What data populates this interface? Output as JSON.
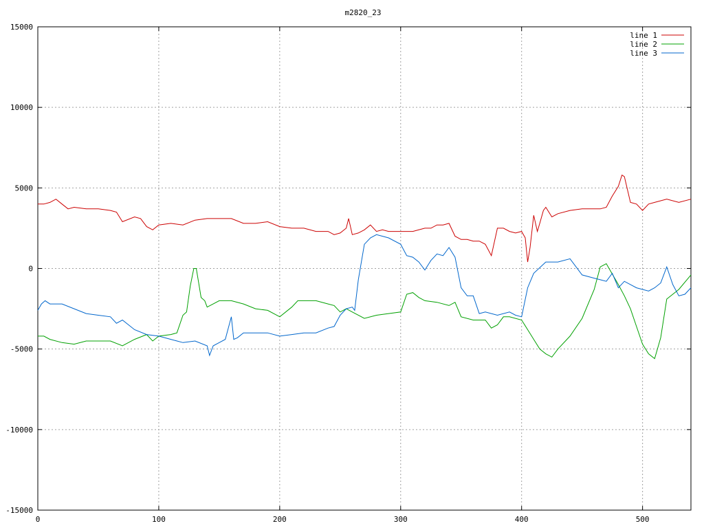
{
  "chart_data": {
    "type": "line",
    "title": "m2820_23",
    "xlabel": "",
    "ylabel": "",
    "xlim": [
      0,
      540
    ],
    "ylim": [
      -15000,
      15000
    ],
    "x_ticks": [
      0,
      100,
      200,
      300,
      400,
      500
    ],
    "y_ticks": [
      -15000,
      -10000,
      -5000,
      0,
      5000,
      10000,
      15000
    ],
    "grid": true,
    "legend_position": "top-right",
    "series": [
      {
        "name": "line 1",
        "color": "#cc0000",
        "x": [
          0,
          5,
          10,
          15,
          20,
          25,
          30,
          40,
          50,
          60,
          65,
          70,
          80,
          85,
          90,
          95,
          100,
          110,
          120,
          130,
          140,
          150,
          160,
          170,
          180,
          190,
          200,
          210,
          220,
          230,
          240,
          245,
          250,
          255,
          257,
          260,
          265,
          270,
          275,
          280,
          285,
          290,
          300,
          310,
          320,
          325,
          330,
          335,
          340,
          345,
          350,
          355,
          360,
          365,
          370,
          375,
          380,
          385,
          390,
          395,
          400,
          403,
          405,
          407,
          410,
          413,
          415,
          418,
          420,
          425,
          430,
          440,
          450,
          460,
          465,
          470,
          475,
          480,
          483,
          485,
          490,
          495,
          500,
          505,
          510,
          520,
          530,
          540
        ],
        "y": [
          4000,
          4000,
          4100,
          4300,
          4000,
          3700,
          3800,
          3700,
          3700,
          3600,
          3500,
          2900,
          3200,
          3100,
          2600,
          2400,
          2700,
          2800,
          2700,
          3000,
          3100,
          3100,
          3100,
          2800,
          2800,
          2900,
          2600,
          2500,
          2500,
          2300,
          2300,
          2100,
          2200,
          2500,
          3100,
          2100,
          2200,
          2400,
          2700,
          2300,
          2400,
          2300,
          2300,
          2300,
          2500,
          2500,
          2700,
          2700,
          2800,
          2000,
          1800,
          1800,
          1700,
          1700,
          1500,
          800,
          2500,
          2500,
          2300,
          2200,
          2300,
          1900,
          400,
          1300,
          3300,
          2300,
          2800,
          3600,
          3800,
          3200,
          3400,
          3600,
          3700,
          3700,
          3700,
          3800,
          4500,
          5100,
          5800,
          5700,
          4100,
          4000,
          3600,
          4000,
          4100,
          4300,
          4100,
          4300
        ]
      },
      {
        "name": "line 2",
        "color": "#00a000",
        "x": [
          0,
          5,
          10,
          20,
          30,
          40,
          50,
          60,
          70,
          80,
          90,
          95,
          100,
          110,
          115,
          120,
          123,
          126,
          129,
          131,
          133,
          135,
          138,
          140,
          145,
          150,
          160,
          170,
          180,
          190,
          200,
          210,
          215,
          220,
          230,
          240,
          245,
          250,
          255,
          260,
          270,
          280,
          290,
          300,
          305,
          310,
          315,
          320,
          330,
          340,
          345,
          350,
          360,
          370,
          375,
          380,
          385,
          390,
          400,
          405,
          410,
          415,
          420,
          425,
          430,
          440,
          450,
          460,
          465,
          470,
          480,
          485,
          490,
          495,
          500,
          505,
          510,
          515,
          520,
          530,
          540
        ],
        "y": [
          -4200,
          -4200,
          -4400,
          -4600,
          -4700,
          -4500,
          -4500,
          -4500,
          -4800,
          -4400,
          -4100,
          -4500,
          -4200,
          -4100,
          -4000,
          -2900,
          -2700,
          -1100,
          0,
          0,
          -900,
          -1800,
          -2000,
          -2400,
          -2200,
          -2000,
          -2000,
          -2200,
          -2500,
          -2600,
          -3000,
          -2400,
          -2000,
          -2000,
          -2000,
          -2200,
          -2300,
          -2700,
          -2500,
          -2700,
          -3100,
          -2900,
          -2800,
          -2700,
          -1600,
          -1500,
          -1800,
          -2000,
          -2100,
          -2300,
          -2100,
          -3000,
          -3200,
          -3200,
          -3700,
          -3500,
          -3000,
          -3000,
          -3200,
          -3800,
          -4400,
          -5000,
          -5300,
          -5500,
          -5000,
          -4200,
          -3100,
          -1300,
          100,
          300,
          -1000,
          -1700,
          -2500,
          -3600,
          -4700,
          -5300,
          -5600,
          -4300,
          -1900,
          -1300,
          -400
        ]
      },
      {
        "name": "line 3",
        "color": "#0066cc",
        "x": [
          0,
          3,
          6,
          10,
          20,
          30,
          40,
          50,
          60,
          65,
          70,
          80,
          90,
          100,
          110,
          120,
          130,
          140,
          142,
          145,
          150,
          155,
          160,
          162,
          165,
          170,
          180,
          190,
          200,
          210,
          220,
          230,
          240,
          245,
          250,
          255,
          260,
          262,
          265,
          270,
          275,
          280,
          285,
          290,
          300,
          305,
          310,
          315,
          320,
          325,
          330,
          335,
          340,
          345,
          350,
          355,
          360,
          365,
          370,
          380,
          390,
          395,
          400,
          405,
          410,
          420,
          430,
          440,
          450,
          460,
          465,
          470,
          475,
          480,
          485,
          490,
          495,
          500,
          505,
          510,
          515,
          520,
          525,
          530,
          535,
          540
        ],
        "y": [
          -2600,
          -2200,
          -2000,
          -2200,
          -2200,
          -2500,
          -2800,
          -2900,
          -3000,
          -3400,
          -3200,
          -3800,
          -4100,
          -4200,
          -4400,
          -4600,
          -4500,
          -4800,
          -5400,
          -4800,
          -4600,
          -4400,
          -3000,
          -4400,
          -4300,
          -4000,
          -4000,
          -4000,
          -4200,
          -4100,
          -4000,
          -4000,
          -3700,
          -3600,
          -2900,
          -2500,
          -2400,
          -2600,
          -700,
          1500,
          1900,
          2100,
          2000,
          1900,
          1500,
          800,
          700,
          400,
          -100,
          500,
          900,
          800,
          1300,
          700,
          -1200,
          -1700,
          -1700,
          -2800,
          -2700,
          -2900,
          -2700,
          -2900,
          -3000,
          -1200,
          -300,
          400,
          400,
          600,
          -400,
          -600,
          -700,
          -800,
          -300,
          -1200,
          -800,
          -1000,
          -1200,
          -1300,
          -1400,
          -1200,
          -900,
          100,
          -1000,
          -1700,
          -1600,
          -1200
        ]
      }
    ]
  }
}
